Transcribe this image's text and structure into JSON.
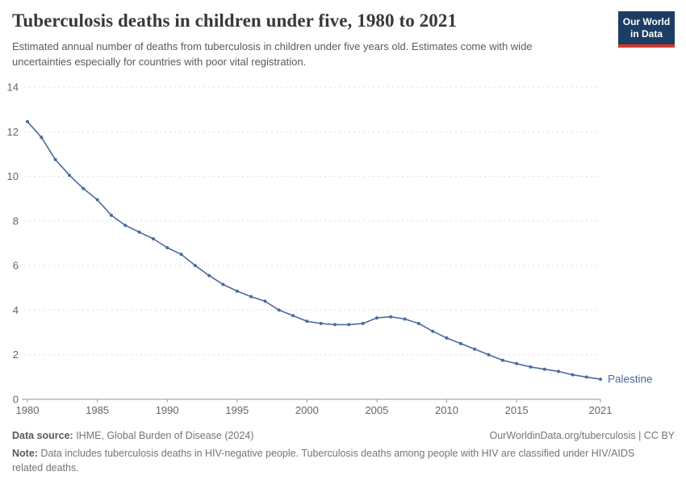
{
  "header": {
    "title": "Tuberculosis deaths in children under five, 1980 to 2021",
    "subtitle": "Estimated annual number of deaths from tuberculosis in children under five years old. Estimates come with wide uncertainties especially for countries with poor vital registration.",
    "logo": {
      "line1": "Our World",
      "line2": "in Data",
      "bg_color": "#1d3d63",
      "stripe_color": "#d4382d"
    }
  },
  "chart_data": {
    "type": "line",
    "title": "Tuberculosis deaths in children under five, 1980 to 2021",
    "xlabel": "",
    "ylabel": "",
    "ylim": [
      0,
      14
    ],
    "y_ticks": [
      0,
      2,
      4,
      6,
      8,
      10,
      12,
      14
    ],
    "x_ticks": [
      1980,
      1985,
      1990,
      1995,
      2000,
      2005,
      2010,
      2015,
      2021
    ],
    "grid": "horizontal-dashed",
    "legend_position": "end-of-line-label",
    "x": [
      1980,
      1981,
      1982,
      1983,
      1984,
      1985,
      1986,
      1987,
      1988,
      1989,
      1990,
      1991,
      1992,
      1993,
      1994,
      1995,
      1996,
      1997,
      1998,
      1999,
      2000,
      2001,
      2002,
      2003,
      2004,
      2005,
      2006,
      2007,
      2008,
      2009,
      2010,
      2011,
      2012,
      2013,
      2014,
      2015,
      2016,
      2017,
      2018,
      2019,
      2020,
      2021
    ],
    "series": [
      {
        "name": "Palestine",
        "color": "#4C6A9E",
        "values": [
          12.45,
          11.75,
          10.75,
          10.05,
          9.45,
          8.95,
          8.25,
          7.8,
          7.5,
          7.2,
          6.8,
          6.5,
          6.0,
          5.55,
          5.15,
          4.85,
          4.6,
          4.4,
          4.0,
          3.75,
          3.5,
          3.4,
          3.35,
          3.35,
          3.4,
          3.65,
          3.7,
          3.6,
          3.4,
          3.05,
          2.75,
          2.5,
          2.25,
          2.0,
          1.75,
          1.6,
          1.45,
          1.35,
          1.25,
          1.1,
          1.0,
          0.9
        ]
      }
    ],
    "axis_color": "#999999",
    "grid_color": "#dedede",
    "tick_label_color": "#666666"
  },
  "footer": {
    "datasource_label": "Data source:",
    "datasource_value": " IHME, Global Burden of Disease (2024)",
    "link": "OurWorldinData.org/tuberculosis | CC BY",
    "note_label": "Note:",
    "note_value": " Data includes tuberculosis deaths in HIV-negative people. Tuberculosis deaths among people with HIV are classified under HIV/AIDS related deaths."
  }
}
